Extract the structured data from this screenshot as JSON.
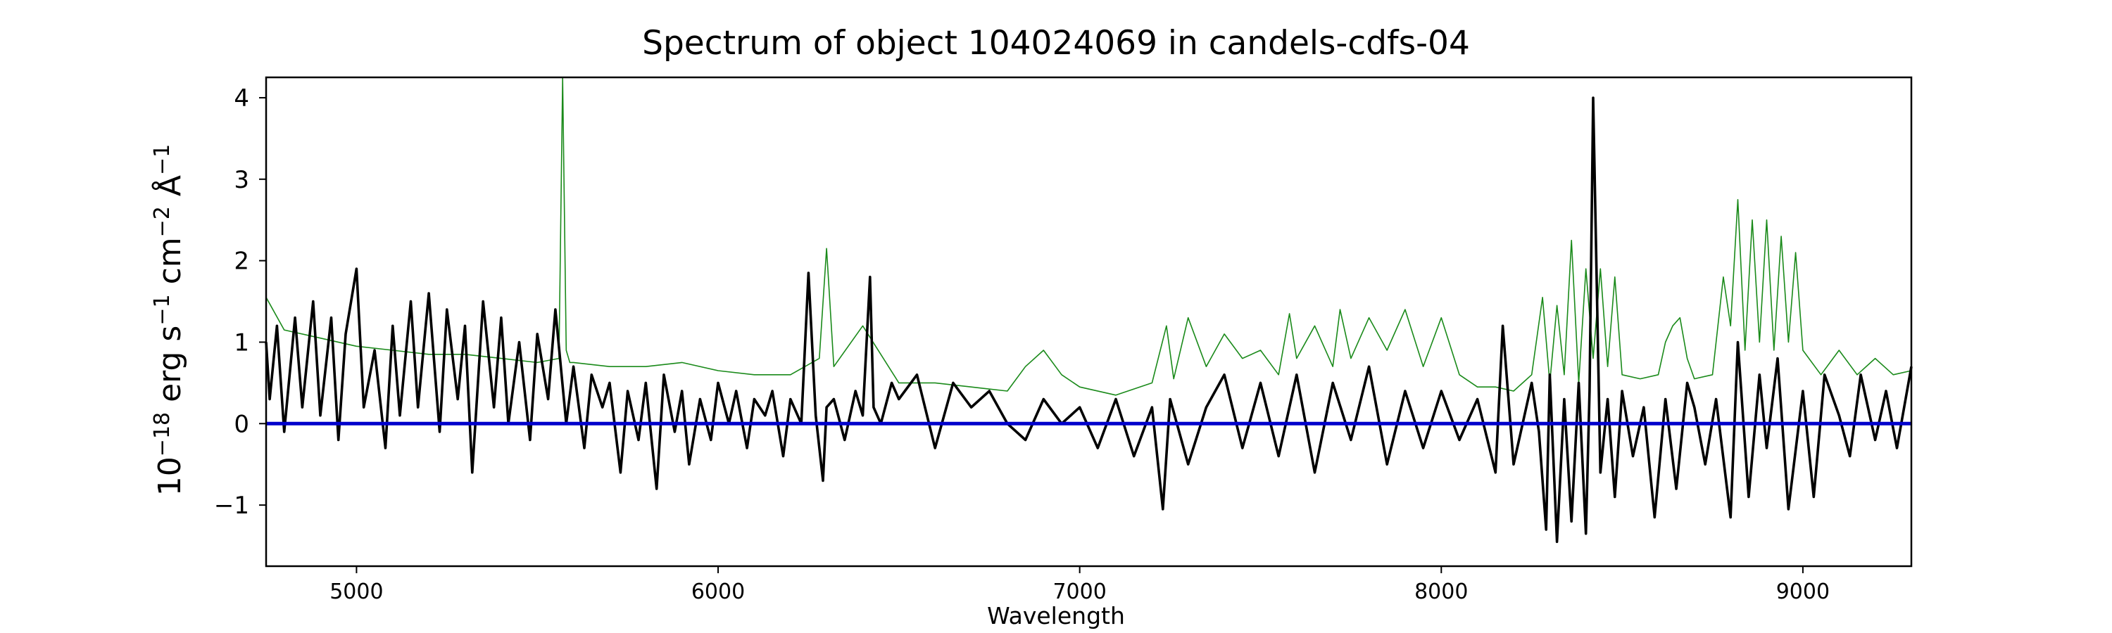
{
  "chart_data": {
    "type": "line",
    "title": "Spectrum of object 104024069 in candels-cdfs-04",
    "xlabel": "Wavelength",
    "ylabel": {
      "base": "10",
      "exp": "−18",
      "rest": " erg s",
      "e1": "−1",
      "rest2": " cm",
      "e2": "−2",
      "rest3": " Å",
      "e3": "−1"
    },
    "xlim": [
      4750,
      9300
    ],
    "ylim": [
      -1.75,
      4.25
    ],
    "xticks": [
      5000,
      6000,
      7000,
      8000,
      9000
    ],
    "xtick_labels": [
      "5000",
      "6000",
      "7000",
      "8000",
      "9000"
    ],
    "yticks": [
      -1,
      0,
      1,
      2,
      3,
      4
    ],
    "ytick_labels": [
      "−1",
      "0",
      "1",
      "2",
      "3",
      "4"
    ],
    "grid": false,
    "series": [
      {
        "role": "error",
        "color": "#1a8a1a",
        "x": [
          4750,
          4800,
          4900,
          5000,
          5100,
          5200,
          5300,
          5400,
          5500,
          5560,
          5570,
          5580,
          5590,
          5600,
          5700,
          5800,
          5900,
          6000,
          6100,
          6200,
          6280,
          6300,
          6320,
          6400,
          6500,
          6600,
          6700,
          6800,
          6850,
          6900,
          6950,
          7000,
          7100,
          7200,
          7240,
          7260,
          7300,
          7350,
          7400,
          7450,
          7500,
          7550,
          7580,
          7600,
          7650,
          7700,
          7720,
          7750,
          7800,
          7850,
          7900,
          7950,
          8000,
          8050,
          8100,
          8150,
          8200,
          8250,
          8280,
          8300,
          8320,
          8340,
          8360,
          8380,
          8400,
          8420,
          8440,
          8460,
          8480,
          8500,
          8550,
          8600,
          8620,
          8640,
          8660,
          8680,
          8700,
          8750,
          8780,
          8800,
          8820,
          8840,
          8860,
          8880,
          8900,
          8920,
          8940,
          8960,
          8980,
          9000,
          9050,
          9100,
          9150,
          9200,
          9250,
          9300
        ],
        "y": [
          1.55,
          1.15,
          1.05,
          0.95,
          0.9,
          0.85,
          0.85,
          0.8,
          0.75,
          0.8,
          4.25,
          0.9,
          0.75,
          0.75,
          0.7,
          0.7,
          0.75,
          0.65,
          0.6,
          0.6,
          0.8,
          2.15,
          0.7,
          1.2,
          0.5,
          0.5,
          0.45,
          0.4,
          0.7,
          0.9,
          0.6,
          0.45,
          0.35,
          0.5,
          1.2,
          0.55,
          1.3,
          0.7,
          1.1,
          0.8,
          0.9,
          0.6,
          1.35,
          0.8,
          1.2,
          0.7,
          1.4,
          0.8,
          1.3,
          0.9,
          1.4,
          0.7,
          1.3,
          0.6,
          0.45,
          0.45,
          0.4,
          0.6,
          1.55,
          0.5,
          1.45,
          0.6,
          2.25,
          0.5,
          1.9,
          0.8,
          1.9,
          0.7,
          1.8,
          0.6,
          0.55,
          0.6,
          1.0,
          1.2,
          1.3,
          0.8,
          0.55,
          0.6,
          1.8,
          1.2,
          2.75,
          0.9,
          2.5,
          1.0,
          2.5,
          0.9,
          2.3,
          1.0,
          2.1,
          0.9,
          0.6,
          0.9,
          0.6,
          0.8,
          0.6,
          0.65
        ]
      },
      {
        "role": "flux",
        "color": "#000000",
        "x": [
          4750,
          4760,
          4780,
          4800,
          4830,
          4850,
          4880,
          4900,
          4930,
          4950,
          4970,
          5000,
          5020,
          5050,
          5080,
          5100,
          5120,
          5150,
          5170,
          5200,
          5230,
          5250,
          5280,
          5300,
          5320,
          5350,
          5380,
          5400,
          5420,
          5450,
          5480,
          5500,
          5530,
          5550,
          5580,
          5600,
          5630,
          5650,
          5680,
          5700,
          5730,
          5750,
          5780,
          5800,
          5830,
          5850,
          5880,
          5900,
          5920,
          5950,
          5980,
          6000,
          6030,
          6050,
          6080,
          6100,
          6130,
          6150,
          6180,
          6200,
          6230,
          6250,
          6270,
          6290,
          6300,
          6320,
          6350,
          6380,
          6400,
          6420,
          6430,
          6450,
          6480,
          6500,
          6550,
          6600,
          6650,
          6700,
          6750,
          6800,
          6850,
          6900,
          6950,
          7000,
          7050,
          7100,
          7150,
          7200,
          7230,
          7250,
          7300,
          7350,
          7400,
          7450,
          7500,
          7550,
          7600,
          7650,
          7700,
          7750,
          7800,
          7850,
          7900,
          7950,
          8000,
          8050,
          8100,
          8150,
          8170,
          8200,
          8250,
          8270,
          8290,
          8300,
          8320,
          8340,
          8360,
          8380,
          8400,
          8410,
          8420,
          8440,
          8460,
          8480,
          8500,
          8530,
          8560,
          8590,
          8620,
          8650,
          8680,
          8700,
          8730,
          8760,
          8800,
          8820,
          8850,
          8880,
          8900,
          8930,
          8960,
          9000,
          9030,
          9060,
          9100,
          9130,
          9160,
          9200,
          9230,
          9260,
          9300
        ],
        "y": [
          1.0,
          0.3,
          1.2,
          -0.1,
          1.3,
          0.2,
          1.5,
          0.1,
          1.3,
          -0.2,
          1.1,
          1.9,
          0.2,
          0.9,
          -0.3,
          1.2,
          0.1,
          1.5,
          0.2,
          1.6,
          -0.1,
          1.4,
          0.3,
          1.2,
          -0.6,
          1.5,
          0.2,
          1.3,
          0.0,
          1.0,
          -0.2,
          1.1,
          0.3,
          1.4,
          0.0,
          0.7,
          -0.3,
          0.6,
          0.2,
          0.5,
          -0.6,
          0.4,
          -0.2,
          0.5,
          -0.8,
          0.6,
          -0.1,
          0.4,
          -0.5,
          0.3,
          -0.2,
          0.5,
          0.0,
          0.4,
          -0.3,
          0.3,
          0.1,
          0.4,
          -0.4,
          0.3,
          0.0,
          1.85,
          0.1,
          -0.7,
          0.2,
          0.3,
          -0.2,
          0.4,
          0.1,
          1.8,
          0.2,
          0.0,
          0.5,
          0.3,
          0.6,
          -0.3,
          0.5,
          0.2,
          0.4,
          0.0,
          -0.2,
          0.3,
          0.0,
          0.2,
          -0.3,
          0.3,
          -0.4,
          0.2,
          -1.05,
          0.3,
          -0.5,
          0.2,
          0.6,
          -0.3,
          0.5,
          -0.4,
          0.6,
          -0.6,
          0.5,
          -0.2,
          0.7,
          -0.5,
          0.4,
          -0.3,
          0.4,
          -0.2,
          0.3,
          -0.6,
          1.2,
          -0.5,
          0.5,
          -0.1,
          -1.3,
          0.6,
          -1.45,
          0.3,
          -1.2,
          0.5,
          -1.35,
          0.4,
          4.0,
          -0.6,
          0.3,
          -0.9,
          0.4,
          -0.4,
          0.2,
          -1.15,
          0.3,
          -0.8,
          0.5,
          0.2,
          -0.5,
          0.3,
          -1.15,
          1.0,
          -0.9,
          0.6,
          -0.3,
          0.8,
          -1.05,
          0.4,
          -0.9,
          0.6,
          0.1,
          -0.4,
          0.6,
          -0.2,
          0.4,
          -0.3,
          0.7
        ]
      },
      {
        "role": "zero",
        "color": "#0000cc",
        "x": [
          4750,
          9300
        ],
        "y": [
          0,
          0
        ]
      }
    ]
  }
}
